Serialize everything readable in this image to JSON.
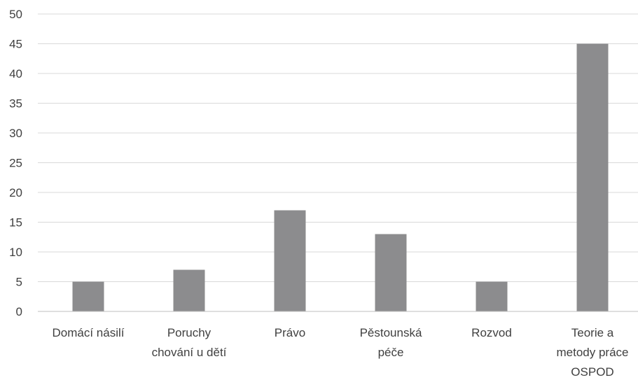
{
  "chart_data": {
    "type": "bar",
    "categories": [
      [
        "Domácí násilí"
      ],
      [
        "Poruchy",
        "chování u dětí"
      ],
      [
        "Právo"
      ],
      [
        "Pěstounská",
        "péče"
      ],
      [
        "Rozvod"
      ],
      [
        "Teorie a",
        "metody práce",
        "OSPOD"
      ]
    ],
    "values": [
      5,
      7,
      17,
      13,
      5,
      45
    ],
    "ylim": [
      0,
      50
    ],
    "yticks": [
      0,
      5,
      10,
      15,
      20,
      25,
      30,
      35,
      40,
      45,
      50
    ],
    "grid": true,
    "legend": "none",
    "bar_color": "#8c8c8e"
  }
}
